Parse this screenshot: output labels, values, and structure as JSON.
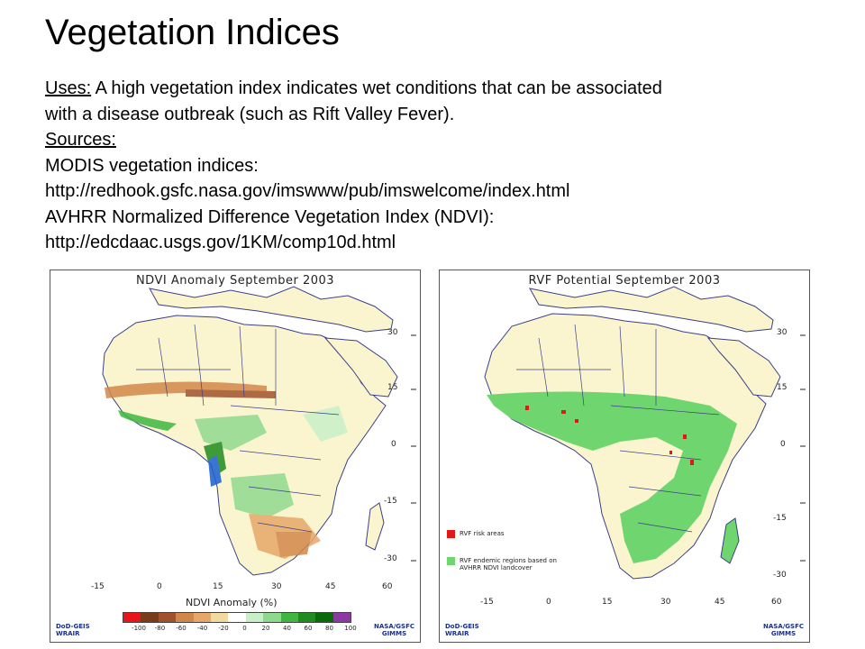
{
  "title": "Vegetation Indices",
  "uses_label": "Uses:",
  "uses_text_1": " A high vegetation index indicates wet conditions that can be associated",
  "uses_text_2": "with a disease outbreak (such as Rift Valley Fever).",
  "sources_label": "Sources:",
  "source_1_name": "MODIS vegetation indices:",
  "source_1_url": "http://redhook.gsfc.nasa.gov/imswww/pub/imswelcome/index.html",
  "source_2_name": "AVHRR Normalized Difference Vegetation Index (NDVI):",
  "source_2_url": "http://edcdaac.usgs.gov/1KM/comp10d.html",
  "left_map": {
    "title": "NDVI Anomaly September   2003",
    "lat_labels": [
      "30",
      "15",
      "0",
      "-15",
      "-30"
    ],
    "lon_labels": [
      "-15",
      "0",
      "15",
      "30",
      "45",
      "60"
    ],
    "colorbar_title": "NDVI Anomaly (%)",
    "colorbar_ticks": [
      "-100",
      "-80",
      "-60",
      "-40",
      "-20",
      "0",
      "20",
      "40",
      "60",
      "80",
      "100"
    ],
    "colorbar_colors": [
      "#e8141c",
      "#7a3b1a",
      "#a0522d",
      "#d2874a",
      "#e6a86a",
      "#f2d9a0",
      "#ffffff",
      "#c8f0c8",
      "#8fd98f",
      "#3fb63f",
      "#1e8c1e",
      "#0a6a0a",
      "#8a3aa0"
    ],
    "logo_left": "DoD-GEIS\nWRAIR",
    "logo_right": "NASA/GSFC\nGIMMS"
  },
  "right_map": {
    "title": "RVF Potential September 2003",
    "lat_labels": [
      "30",
      "15",
      "0",
      "-15",
      "-30"
    ],
    "lon_labels": [
      "-15",
      "0",
      "15",
      "30",
      "45",
      "60"
    ],
    "legend": [
      {
        "color": "#e01818",
        "label": "RVF risk areas"
      },
      {
        "color": "#6fd66f",
        "label": "RVF endemic regions based on\nAVHRR NDVI landcover"
      }
    ],
    "logo_left": "DoD-GEIS\nWRAIR",
    "logo_right": "NASA/GSFC\nGIMMS"
  },
  "colors": {
    "land": "#fbf5cf",
    "ocean": "#ffffff",
    "border": "#3a3f88",
    "green": "#6fd66f",
    "red": "#e01818"
  }
}
